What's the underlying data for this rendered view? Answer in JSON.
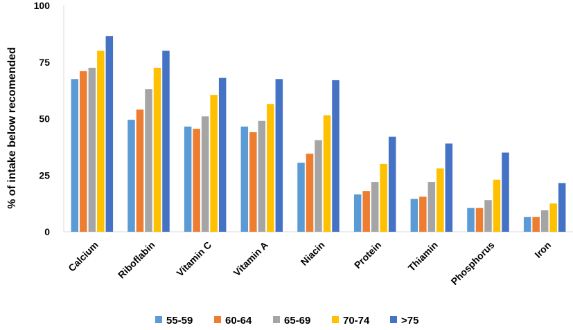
{
  "chart_data": {
    "type": "bar",
    "ylabel": "% of intake below recomended",
    "xlabel": "",
    "ylim": [
      0,
      100
    ],
    "yticks": [
      "0",
      "25",
      "50",
      "75",
      "100"
    ],
    "categories": [
      "Calcium",
      "Riboflabin",
      "Vitamin C",
      "Vitamin A",
      "Niacin",
      "Protein",
      "Thiamin",
      "Phosphorus",
      "Iron"
    ],
    "series": [
      {
        "name": "55-59",
        "color": "#5b9bd5",
        "values": [
          67.5,
          49.5,
          46.5,
          46.5,
          30.5,
          16.5,
          14.5,
          10.5,
          6.5
        ]
      },
      {
        "name": "60-64",
        "color": "#ed7d31",
        "values": [
          71,
          54,
          45.5,
          44,
          34.5,
          18,
          15.5,
          10.5,
          6.5
        ]
      },
      {
        "name": "65-69",
        "color": "#a5a5a5",
        "values": [
          72.5,
          63,
          51,
          49,
          40.5,
          22,
          22,
          14,
          9.5
        ]
      },
      {
        "name": "70-74",
        "color": "#ffc000",
        "values": [
          80,
          72.5,
          60.5,
          56.5,
          51.5,
          30,
          28,
          23,
          12.5
        ]
      },
      {
        "name": ">75",
        "color": "#4472c4",
        "values": [
          86.5,
          80,
          68,
          67.5,
          67,
          42,
          39,
          35,
          21.5
        ]
      }
    ],
    "grid": false,
    "legend_position": "bottom"
  }
}
